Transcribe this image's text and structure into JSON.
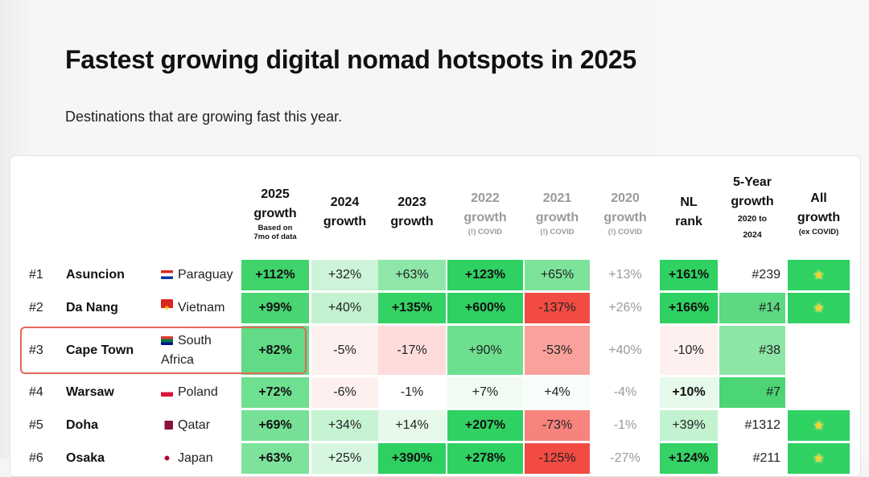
{
  "title": "Fastest growing digital nomad hotspots in 2025",
  "subtitle": "Destinations that are growing fast this year.",
  "headers": [
    {
      "lines": [
        "2025",
        "growth"
      ],
      "sub": [
        "Based on",
        "7mo of data"
      ],
      "dim": false
    },
    {
      "lines": [
        "2024",
        "growth"
      ],
      "sub": [],
      "dim": false
    },
    {
      "lines": [
        "2023",
        "growth"
      ],
      "sub": [],
      "dim": false
    },
    {
      "lines": [
        "2022",
        "growth"
      ],
      "sub": [
        "(!) COVID"
      ],
      "dim": true
    },
    {
      "lines": [
        "2021",
        "growth"
      ],
      "sub": [
        "(!) COVID"
      ],
      "dim": true
    },
    {
      "lines": [
        "2020",
        "growth"
      ],
      "sub": [
        "(!) COVID"
      ],
      "dim": true
    },
    {
      "lines": [
        "NL",
        "rank"
      ],
      "sub": [],
      "dim": false
    },
    {
      "lines": [
        "5-Year",
        "growth"
      ],
      "sub": [
        "2020 to",
        "2024"
      ],
      "dim": false
    },
    {
      "lines": [
        "All",
        "growth"
      ],
      "sub": [
        "(ex COVID)"
      ],
      "dim": false
    }
  ],
  "star_icon": "star-icon",
  "rows": [
    {
      "rank": "#1",
      "city": "Asuncion",
      "flag": "paraguay-flag-icon",
      "country": [
        "Paraguay"
      ],
      "cells": [
        "+112%",
        "+32%",
        "+63%",
        "+123%",
        "+65%",
        "+13%",
        "+161%",
        "#239",
        "star"
      ],
      "colors": [
        "#3fd36b",
        "#cdf4d8",
        "#8ee7a8",
        "#2fd162",
        "#7de39b",
        "#ffffff",
        "#2fd162",
        "#ffffff",
        "#30d163"
      ]
    },
    {
      "rank": "#2",
      "city": "Da Nang",
      "flag": "vietnam-flag-icon",
      "country": [
        "Vietnam"
      ],
      "cells": [
        "+99%",
        "+40%",
        "+135%",
        "+600%",
        "-137%",
        "+26%",
        "+166%",
        "#14",
        "star"
      ],
      "colors": [
        "#48d572",
        "#c2f2cf",
        "#33d264",
        "#2dd061",
        "#f14b43",
        "#ffffff",
        "#2fd162",
        "#5cda81",
        "#30d163"
      ]
    },
    {
      "rank": "#3",
      "city": "Cape Town",
      "flag": "south-africa-flag-icon",
      "country": [
        "South",
        "Africa"
      ],
      "cells": [
        "+82%",
        "-5%",
        "-17%",
        "+90%",
        "-53%",
        "+40%",
        "-10%",
        "#38",
        ""
      ],
      "colors": [
        "#61db85",
        "#fdf0ef",
        "#fddcdb",
        "#6de090",
        "#f9a29c",
        "#ffffff",
        "#fdf0ef",
        "#8ce6a6",
        "#ffffff"
      ]
    },
    {
      "rank": "#4",
      "city": "Warsaw",
      "flag": "poland-flag-icon",
      "country": [
        "Poland"
      ],
      "cells": [
        "+72%",
        "-6%",
        "-1%",
        "+7%",
        "+4%",
        "-4%",
        "+10%",
        "#7",
        ""
      ],
      "colors": [
        "#6fdf90",
        "#fdf0ef",
        "#ffffff",
        "#f1fbf3",
        "#f7fdf8",
        "#ffffff",
        "#e6f9ea",
        "#4bd673",
        "#ffffff"
      ]
    },
    {
      "rank": "#5",
      "city": "Doha",
      "flag": "qatar-flag-icon",
      "country": [
        "Qatar"
      ],
      "cells": [
        "+69%",
        "+34%",
        "+14%",
        "+207%",
        "-73%",
        "-1%",
        "+39%",
        "#1312",
        "star"
      ],
      "colors": [
        "#77e097",
        "#c6f3d2",
        "#e6f9ea",
        "#2fd162",
        "#f6837c",
        "#ffffff",
        "#c2f2cf",
        "#ffffff",
        "#30d163"
      ]
    },
    {
      "rank": "#6",
      "city": "Osaka",
      "flag": "japan-flag-icon",
      "country": [
        "Japan"
      ],
      "cells": [
        "+63%",
        "+25%",
        "+390%",
        "+278%",
        "-125%",
        "-27%",
        "+124%",
        "#211",
        "star"
      ],
      "colors": [
        "#7de39b",
        "#d6f6df",
        "#2dd061",
        "#2fd162",
        "#f14b43",
        "#ffffff",
        "#35d265",
        "#ffffff",
        "#30d163"
      ]
    }
  ]
}
